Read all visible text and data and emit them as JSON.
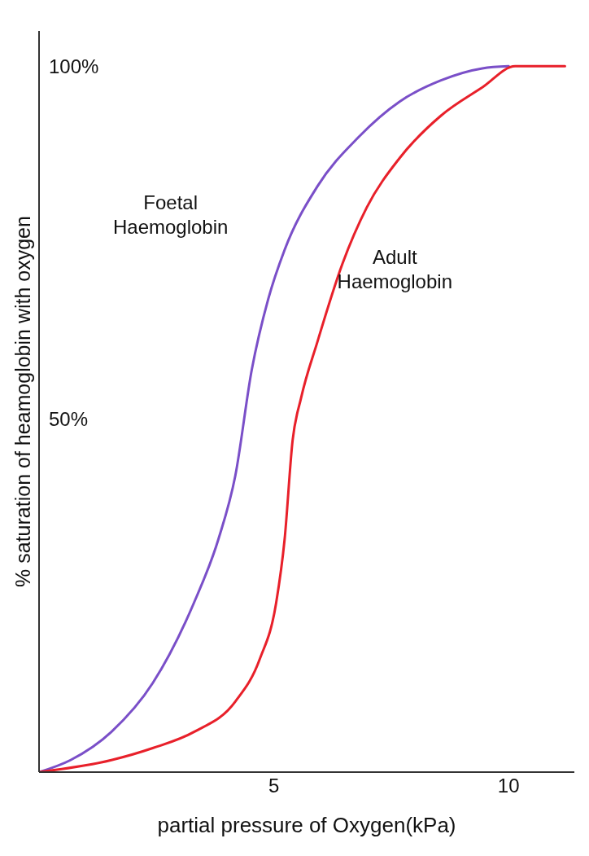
{
  "chart_data": {
    "type": "line",
    "xlabel": "partial pressure of Oxygen(kPa)",
    "ylabel": "% saturation of heamoglobin with oxygen",
    "xlim": [
      0,
      11.4
    ],
    "ylim": [
      0,
      105
    ],
    "xticks": [
      5,
      10
    ],
    "yticks": [
      {
        "value": 50,
        "label": "50%"
      },
      {
        "value": 100,
        "label": "100%"
      }
    ],
    "marker": "none",
    "line_style": "solid",
    "series": [
      {
        "name": "Foetal Haemoglobin",
        "color": "#7a4fc8",
        "x": [
          0,
          0.67,
          1.54,
          2.42,
          3.3,
          3.82,
          4.18,
          4.53,
          4.88,
          5.23,
          5.93,
          6.81,
          7.68,
          8.56,
          9.44,
          10
        ],
        "values": [
          0,
          1.7,
          5.7,
          12.6,
          24,
          33,
          42,
          57,
          67,
          74,
          83,
          90,
          95,
          98,
          99.7,
          100
        ]
      },
      {
        "name": "Adult Haemoglobin",
        "color": "#e8202a",
        "x": [
          0,
          1.54,
          2.42,
          3.3,
          4.18,
          4.7,
          5.05,
          5.23,
          5.4,
          5.58,
          5.93,
          6.46,
          6.98,
          7.68,
          8.56,
          9.44,
          10.14,
          11.2
        ],
        "values": [
          0,
          1.7,
          3.4,
          5.7,
          10,
          16,
          24,
          33,
          47,
          53,
          61,
          72,
          80,
          87,
          93,
          97,
          100,
          100
        ]
      }
    ]
  }
}
